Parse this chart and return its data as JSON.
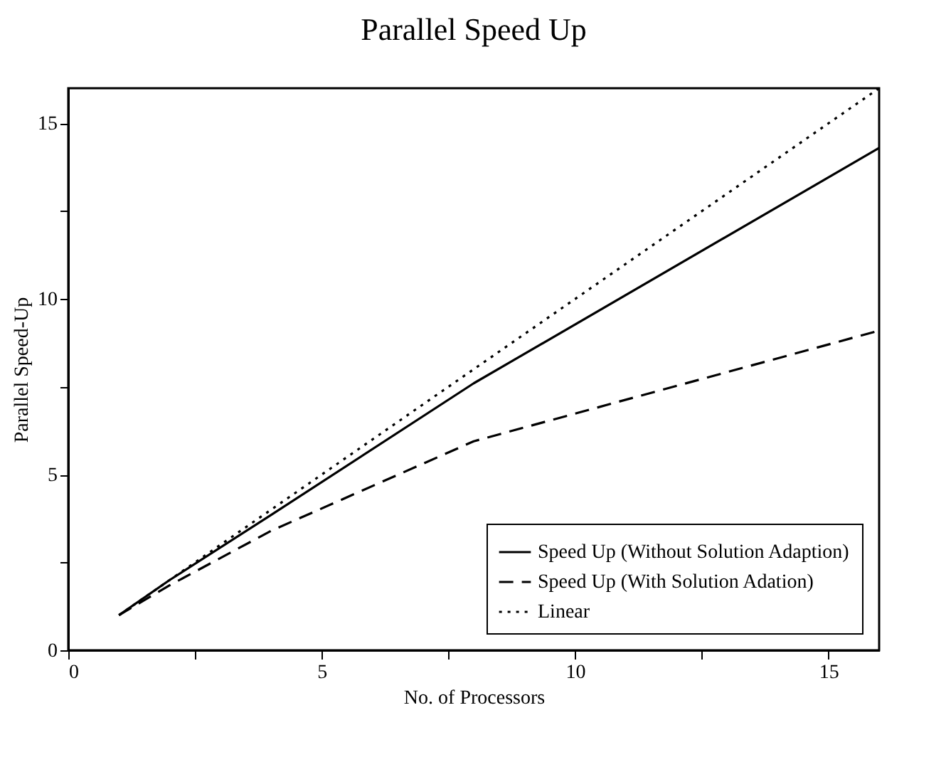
{
  "chart_data": {
    "type": "line",
    "title": "Parallel Speed Up",
    "xlabel": "No. of Processors",
    "ylabel": "Parallel Speed-Up",
    "xlim": [
      0,
      16
    ],
    "ylim": [
      0,
      16
    ],
    "xticks": [
      0,
      {
        "value": 2.5,
        "label": null
      },
      5,
      {
        "value": 7.5,
        "label": null
      },
      10,
      {
        "value": 12.5,
        "label": null
      },
      15
    ],
    "yticks": [
      0,
      {
        "value": 2.5,
        "label": null
      },
      5,
      {
        "value": 7.5,
        "label": null
      },
      10,
      {
        "value": 12.5,
        "label": null
      },
      15
    ],
    "series": [
      {
        "name": "Speed Up (Without Solution Adaption)",
        "color": "#000000",
        "line_style": "solid",
        "x": [
          1,
          2,
          4,
          8,
          16
        ],
        "values": [
          1,
          2,
          3.85,
          7.6,
          14.3
        ]
      },
      {
        "name": "Speed Up (With Solution Adation)",
        "color": "#000000",
        "line_style": "dashed",
        "x": [
          1,
          2,
          4,
          8,
          16
        ],
        "values": [
          1,
          1.85,
          3.4,
          5.95,
          9.1
        ]
      },
      {
        "name": "Linear",
        "color": "#000000",
        "line_style": "dotted",
        "x": [
          1,
          16
        ],
        "values": [
          1,
          16
        ]
      }
    ],
    "legend": "bottom right",
    "grid": false
  }
}
